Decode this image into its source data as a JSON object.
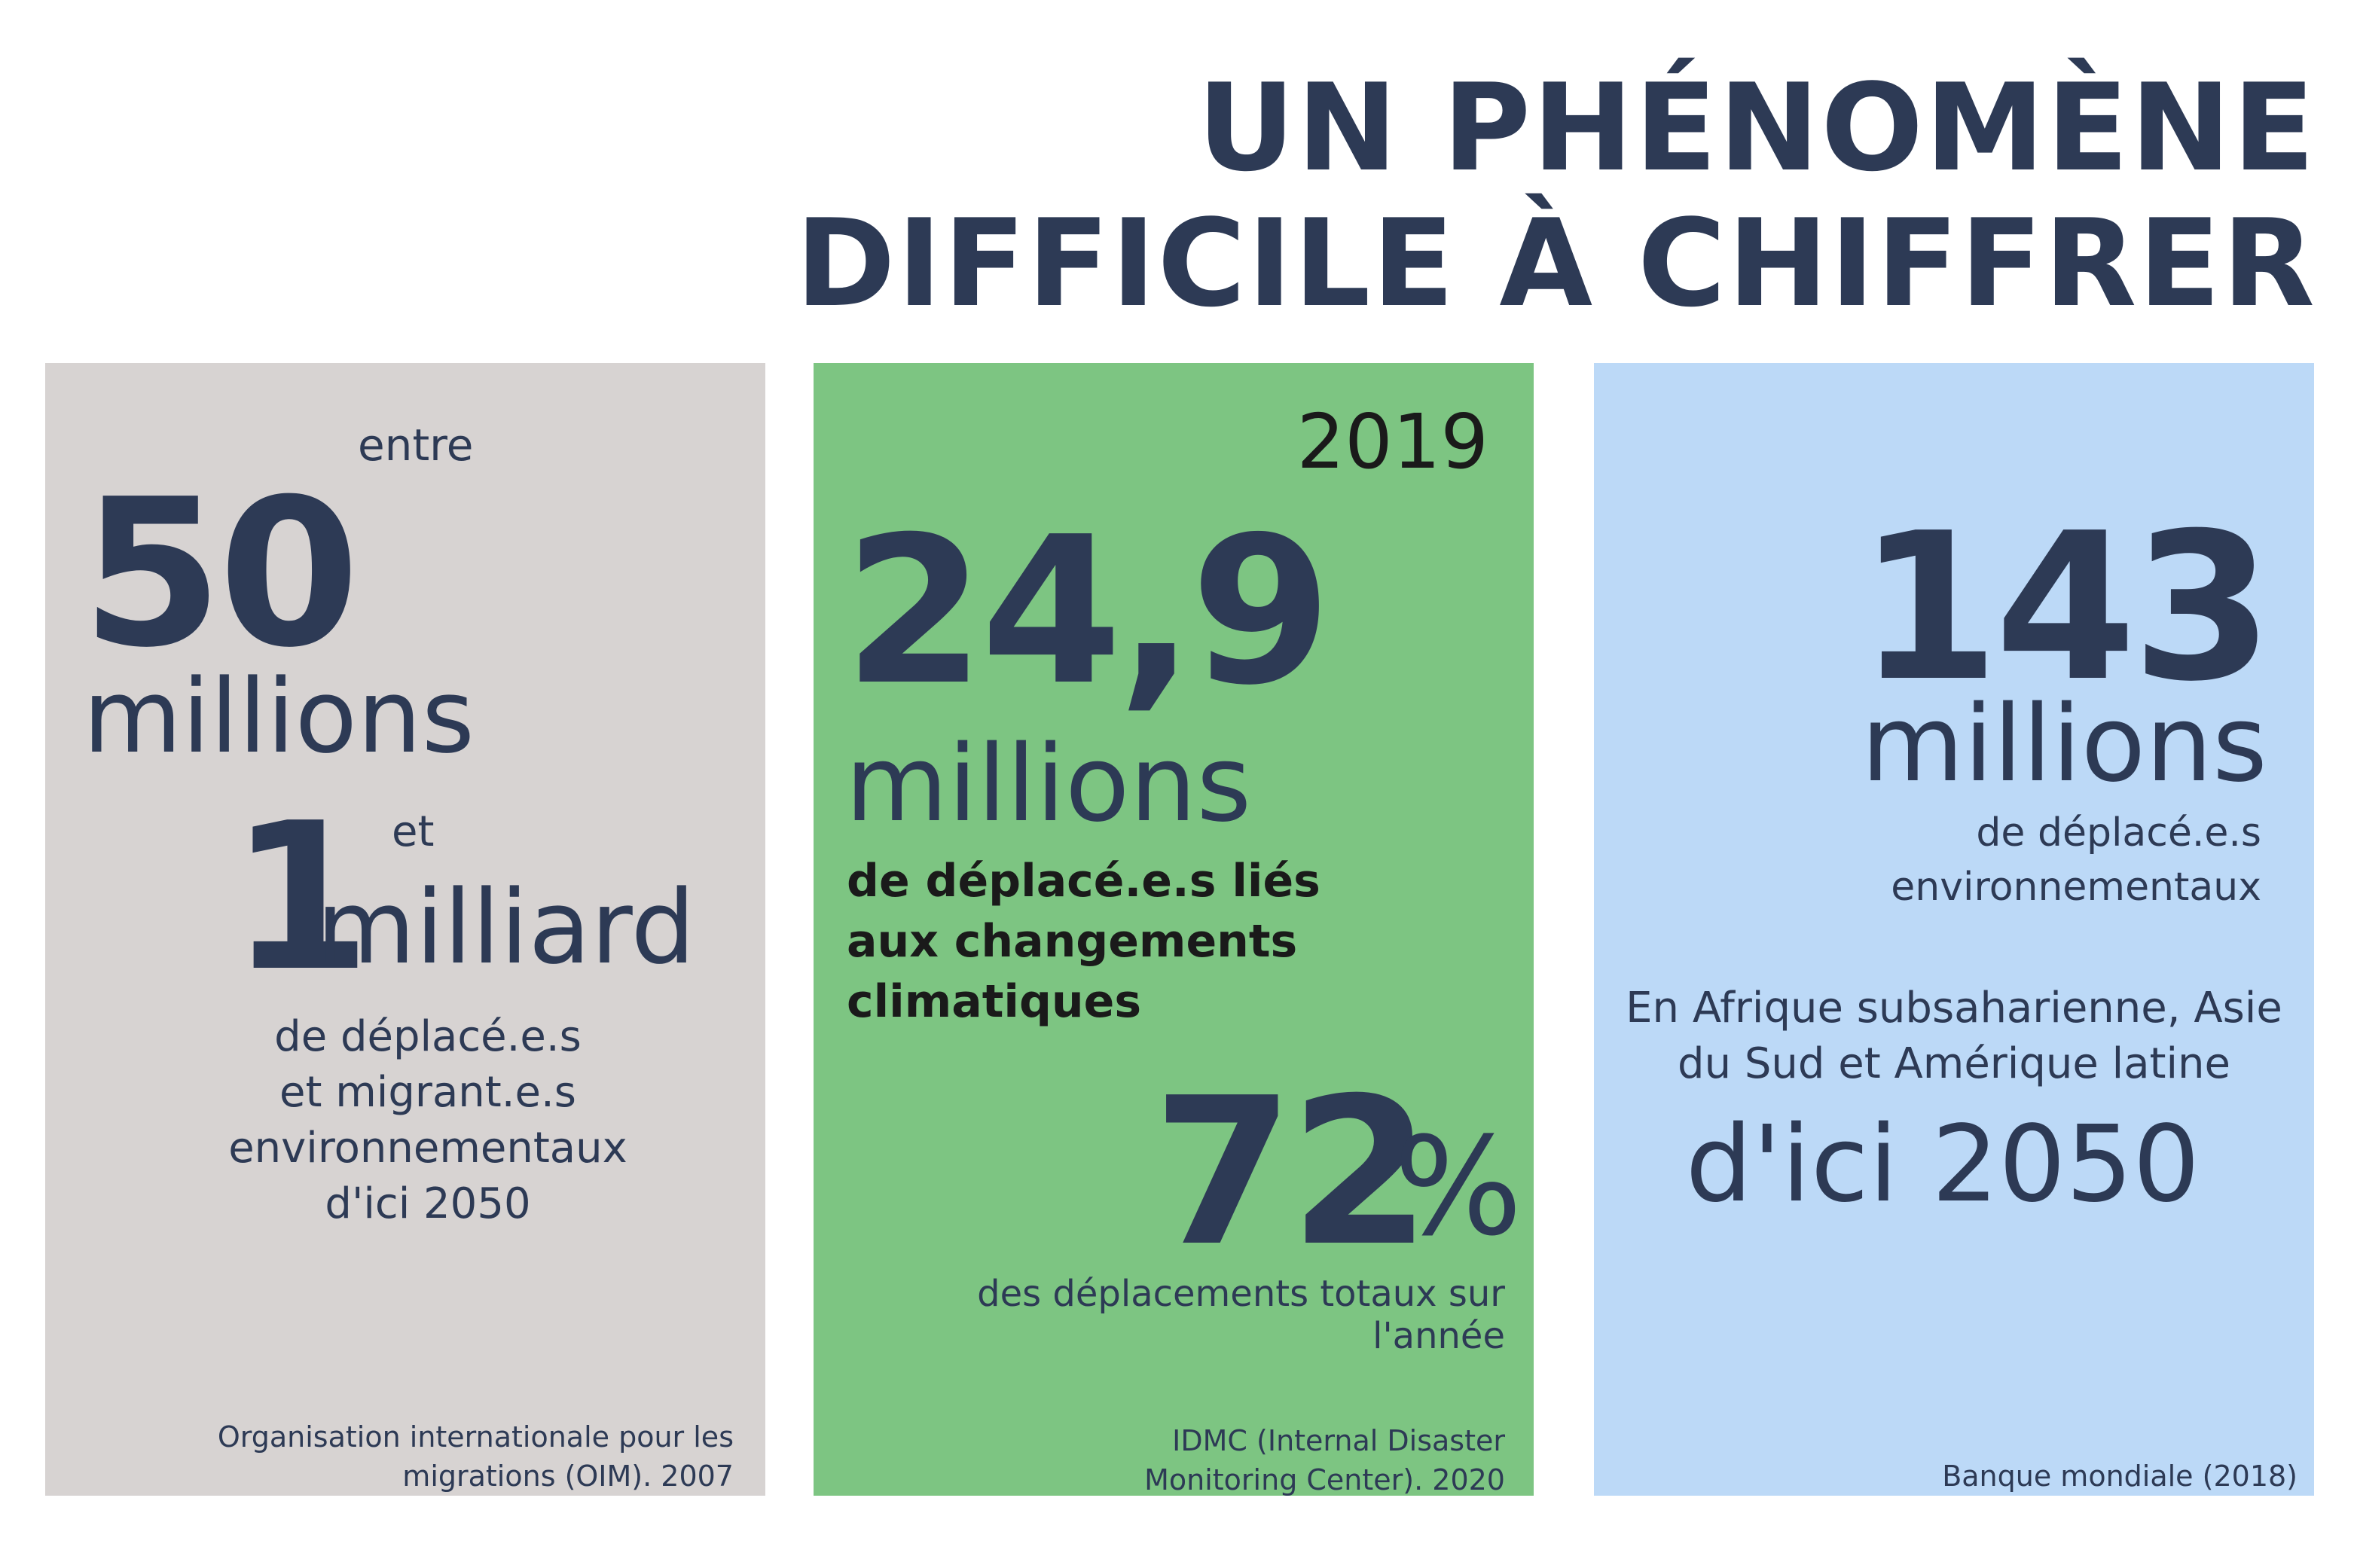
{
  "title": {
    "line1": "UN PHÉNOMÈNE",
    "line2": "DIFFICILE À CHIFFRER"
  },
  "panels": [
    {
      "intro": "entre",
      "figure1": "50",
      "unit1": "millions",
      "connector": "et",
      "figure2": "1",
      "unit2": "milliard",
      "description": [
        "de déplacé.e.s",
        "et migrant.e.s",
        "environnementaux",
        "d'ici 2050"
      ],
      "source": [
        "Organisation internationale pour les",
        "migrations (OIM). 2007"
      ],
      "color": "#d7d3d2"
    },
    {
      "year": "2019",
      "figure": "24,9",
      "unit": "millions",
      "description": [
        "de déplacé.e.s liés",
        "aux changements",
        "climatiques"
      ],
      "percent_value": "72",
      "percent_sign": "%",
      "percent_description": [
        "des déplacements totaux sur",
        "l'année"
      ],
      "source": [
        "IDMC (Internal Disaster",
        "Monitoring Center). 2020"
      ],
      "color": "#7dc582"
    },
    {
      "figure": "143",
      "unit": "millions",
      "description": [
        "de déplacé.e.s",
        "environnementaux"
      ],
      "regions": [
        "En Afrique subsaharienne, Asie",
        "du Sud et Amérique latine"
      ],
      "horizon": "d'ici 2050",
      "source": [
        "Banque mondiale (2018)"
      ],
      "color": "#bcd9f7"
    }
  ],
  "colors": {
    "text": "#2d3a55",
    "source_text": "#2d3a55",
    "year_text": "#1a1a1a"
  }
}
